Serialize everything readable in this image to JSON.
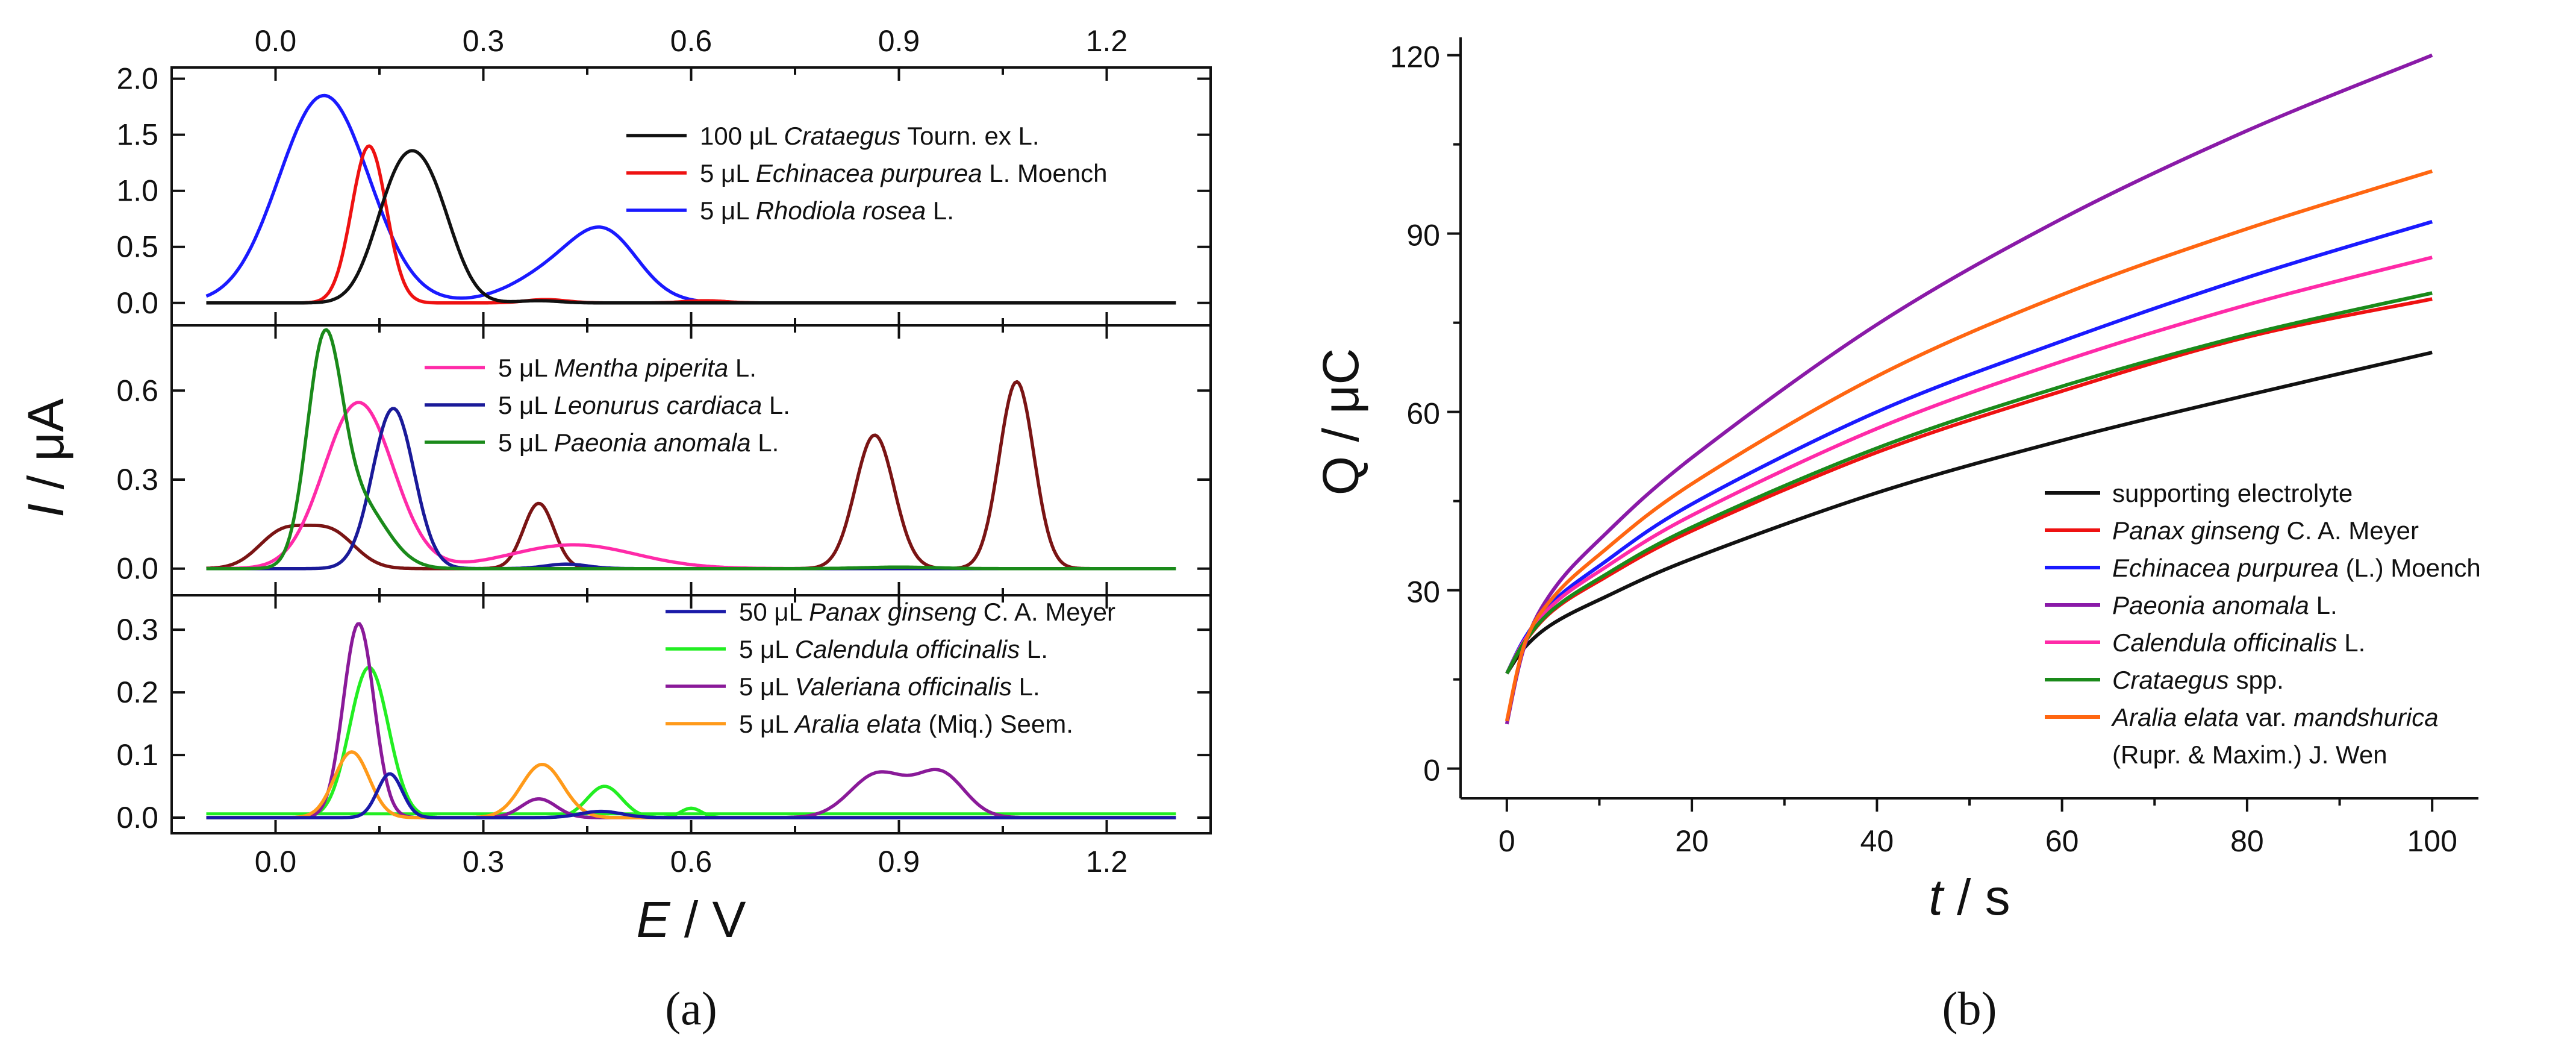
{
  "chart_data": [
    {
      "id": "a",
      "panel_label": "(a)",
      "type": "line",
      "x_title_italic": "E",
      "x_title_rest": " / V",
      "y_title_italic": "I",
      "y_title_rest": " / μA",
      "x_ticks": [
        "0.0",
        "0.3",
        "0.6",
        "0.9",
        "1.2"
      ],
      "x_tick_values": [
        0.0,
        0.3,
        0.6,
        0.9,
        1.2
      ],
      "xlim": [
        -0.15,
        1.35
      ],
      "x_data_range": [
        -0.1,
        1.3
      ],
      "subplots": [
        {
          "ylim": [
            -0.2,
            2.1
          ],
          "y_ticks": [
            "0.0",
            "0.5",
            "1.0",
            "1.5",
            "2.0"
          ],
          "y_tick_values": [
            0.0,
            0.5,
            1.0,
            1.5,
            2.0
          ],
          "legend": [
            {
              "prefix": "100 μL ",
              "italic": "Crataegus",
              "suffix": " Tourn. ex L.",
              "color": "#111111"
            },
            {
              "prefix": "5 μL ",
              "italic": "Echinacea purpurea",
              "suffix": " L. Moench",
              "color": "#ee1111"
            },
            {
              "prefix": "5 μL ",
              "italic": "Rhodiola rosea",
              "suffix": " L.",
              "color": "#1a1aff"
            }
          ],
          "series": [
            {
              "color": "#1a1aff",
              "peaks": [
                [
                  1.85,
                  0.07,
                  0.065
                ],
                [
                  0.37,
                  0.43,
                  0.07
                ],
                [
                  0.37,
                  0.48,
                  0.045
                ]
              ]
            },
            {
              "color": "#ee1111",
              "peaks": [
                [
                  1.4,
                  0.135,
                  0.025
                ],
                [
                  0.03,
                  0.39,
                  0.03
                ],
                [
                  0.02,
                  0.62,
                  0.03
                ]
              ]
            },
            {
              "color": "#111111",
              "peaks": [
                [
                  0.92,
                  0.175,
                  0.035
                ],
                [
                  0.83,
                  0.225,
                  0.035
                ],
                [
                  0.02,
                  0.38,
                  0.03
                ]
              ]
            }
          ]
        },
        {
          "ylim": [
            -0.09,
            0.82
          ],
          "y_ticks": [
            "0.0",
            "0.3",
            "0.6"
          ],
          "y_tick_values": [
            0.0,
            0.3,
            0.6
          ],
          "legend": [
            {
              "prefix": "5 μL ",
              "italic": "Mentha piperita",
              "suffix": " L.",
              "color": "#ff2aa8"
            },
            {
              "prefix": "5 μL ",
              "italic": "Leonurus cardiaca",
              "suffix": " L.",
              "color": "#1a1a99"
            },
            {
              "prefix": "5 μL ",
              "italic": "Paeonia anomala",
              "suffix": " L.",
              "color": "#1a8a1a"
            }
          ],
          "series": [
            {
              "color": "#7a1414",
              "peaks": [
                [
                  0.12,
                  0.01,
                  0.035
                ],
                [
                  0.12,
                  0.08,
                  0.035
                ],
                [
                  0.22,
                  0.38,
                  0.022
                ],
                [
                  0.45,
                  0.865,
                  0.028
                ],
                [
                  0.63,
                  1.07,
                  0.025
                ]
              ]
            },
            {
              "color": "#ff2aa8",
              "peaks": [
                [
                  0.56,
                  0.12,
                  0.05
                ],
                [
                  0.08,
                  0.43,
                  0.09
                ]
              ]
            },
            {
              "color": "#1a1a99",
              "peaks": [
                [
                  0.54,
                  0.17,
                  0.03
                ],
                [
                  0.015,
                  0.42,
                  0.03
                ]
              ]
            },
            {
              "color": "#1a8a1a",
              "peaks": [
                [
                  0.7,
                  0.07,
                  0.025
                ],
                [
                  0.22,
                  0.12,
                  0.04
                ],
                [
                  0.005,
                  0.9,
                  0.05
                ]
              ]
            }
          ]
        },
        {
          "ylim": [
            -0.025,
            0.355
          ],
          "y_ticks": [
            "0.0",
            "0.1",
            "0.2",
            "0.3"
          ],
          "y_tick_values": [
            0.0,
            0.1,
            0.2,
            0.3
          ],
          "legend": [
            {
              "prefix": "50 μL ",
              "italic": "Panax ginseng",
              "suffix": " C. A. Meyer",
              "color": "#1a1aa8"
            },
            {
              "prefix": "5 μL ",
              "italic": "Calendula officinalis",
              "suffix": " L.",
              "color": "#22ee22"
            },
            {
              "prefix": "5 μL ",
              "italic": "Valeriana officinalis",
              "suffix": " L.",
              "color": "#8a1a99"
            },
            {
              "prefix": "5 μL ",
              "italic": "Aralia elata",
              "suffix": " (Miq.) Seem.",
              "color": "#ff9a1a"
            }
          ],
          "baseline": {
            "color": "#22ee22",
            "value": 0.006
          },
          "series": [
            {
              "color": "#22ee22",
              "peaks": [
                [
                  0.24,
                  0.135,
                  0.028
                ],
                [
                  0.05,
                  0.475,
                  0.025
                ],
                [
                  0.015,
                  0.6,
                  0.015
                ]
              ]
            },
            {
              "color": "#8a1a99",
              "peaks": [
                [
                  0.31,
                  0.12,
                  0.022
                ],
                [
                  0.03,
                  0.38,
                  0.025
                ],
                [
                  0.07,
                  0.87,
                  0.04
                ],
                [
                  0.07,
                  0.96,
                  0.035
                ]
              ]
            },
            {
              "color": "#ff9a1a",
              "peaks": [
                [
                  0.105,
                  0.11,
                  0.025
                ],
                [
                  0.085,
                  0.385,
                  0.03
                ]
              ]
            },
            {
              "color": "#1a1aa8",
              "peaks": [
                [
                  0.07,
                  0.165,
                  0.018
                ],
                [
                  0.01,
                  0.47,
                  0.03
                ]
              ]
            }
          ]
        }
      ]
    },
    {
      "id": "b",
      "panel_label": "(b)",
      "type": "line",
      "x_title_italic": "t",
      "x_title_rest": " / s",
      "y_title": "Q / μC",
      "xlim": [
        -5,
        105
      ],
      "ylim": [
        -5,
        123
      ],
      "x_ticks": [
        "0",
        "20",
        "40",
        "60",
        "80",
        "100"
      ],
      "x_tick_values": [
        0,
        20,
        40,
        60,
        80,
        100
      ],
      "y_ticks": [
        "0",
        "30",
        "60",
        "90",
        "120"
      ],
      "y_tick_values": [
        0,
        30,
        60,
        90,
        120
      ],
      "x": [
        0,
        2,
        5,
        10,
        20,
        40,
        60,
        80,
        100
      ],
      "series": [
        {
          "legend_italic": "",
          "legend_rest": "supporting electrolyte",
          "color": "#111111",
          "values": [
            16,
            20.5,
            24.4,
            28.4,
            35.3,
            46.4,
            55.2,
            62.8,
            70
          ]
        },
        {
          "legend_italic": "Panax ginseng",
          "legend_rest": " C. A. Meyer",
          "color": "#ee1111",
          "values": [
            16,
            21.4,
            26.6,
            31.6,
            40,
            53.2,
            63.5,
            72.6,
            79
          ]
        },
        {
          "legend_italic": "Echinacea purpurea",
          "legend_rest": " (L.) Moench",
          "color": "#1a1aff",
          "values": [
            16,
            22.1,
            28.1,
            34.1,
            44.5,
            60,
            71.9,
            82.6,
            92
          ]
        },
        {
          "legend_italic": "Paeonia anomala",
          "legend_rest": " L.",
          "color": "#8a1aa8",
          "values": [
            7.5,
            21,
            30,
            38.5,
            52.3,
            74.7,
            92.5,
            107.3,
            120
          ]
        },
        {
          "legend_italic": "Calendula officinalis",
          "legend_rest": " L.",
          "color": "#ff2aa8",
          "values": [
            16,
            21.8,
            27.6,
            33.2,
            42.6,
            57.2,
            68.5,
            78,
            86
          ]
        },
        {
          "legend_italic": "Crataegus",
          "legend_rest": " spp.",
          "color": "#1a8a1a",
          "values": [
            16,
            21.5,
            26.8,
            32,
            40.6,
            53.9,
            64.3,
            73,
            80
          ]
        },
        {
          "legend_italic": "Aralia elata",
          "legend_rest": " var. ",
          "legend_italic2": "mandshurica",
          "legend_line2": "(Rupr. & Maxim.) J. Wen",
          "color": "#ff6611",
          "values": [
            8,
            21.3,
            28.8,
            36,
            47.9,
            66,
            79.7,
            90.8,
            100.5
          ]
        }
      ]
    }
  ]
}
